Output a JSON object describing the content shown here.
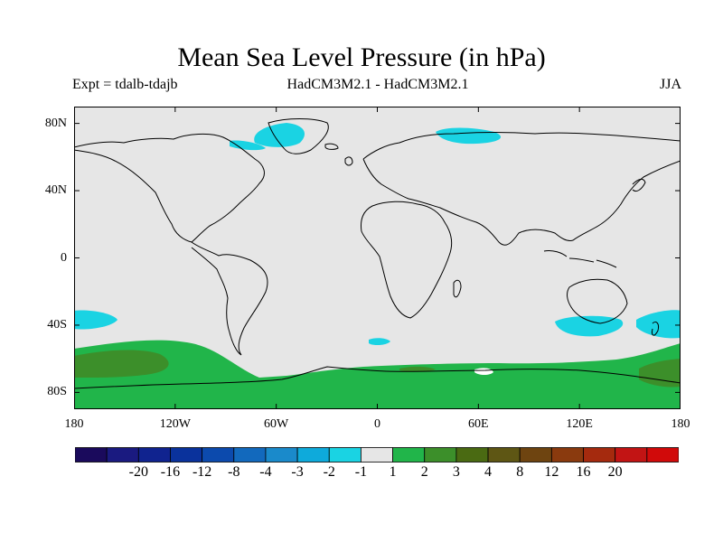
{
  "title": "Mean Sea Level Pressure (in hPa)",
  "subtitle_left": "Expt = tdalb-tdajb",
  "subtitle_center": "HadCM3M2.1 - HadCM3M2.1",
  "subtitle_right": "JJA",
  "axes": {
    "lat_ticks": [
      {
        "value": 80,
        "label": "80N"
      },
      {
        "value": 40,
        "label": "40N"
      },
      {
        "value": 0,
        "label": "0"
      },
      {
        "value": -40,
        "label": "40S"
      },
      {
        "value": -80,
        "label": "80S"
      }
    ],
    "lon_ticks": [
      {
        "value": -180,
        "label": "180"
      },
      {
        "value": -120,
        "label": "120W"
      },
      {
        "value": -60,
        "label": "60W"
      },
      {
        "value": 0,
        "label": "0"
      },
      {
        "value": 60,
        "label": "60E"
      },
      {
        "value": 120,
        "label": "120E"
      },
      {
        "value": 180,
        "label": "180"
      }
    ],
    "lon_range": [
      -180,
      180
    ],
    "lat_range": [
      -90,
      90
    ]
  },
  "colorbar": {
    "colors": [
      "#1a0a5c",
      "#1a1a80",
      "#10238f",
      "#0a329c",
      "#0c4aad",
      "#1269bd",
      "#1a8acb",
      "#0eaadb",
      "#1ad3e3",
      "#e6e6e6",
      "#21b54a",
      "#3c8f2a",
      "#4a6a12",
      "#5e5614",
      "#6e4410",
      "#8a3a0e",
      "#a52a0e",
      "#c21414",
      "#d10a0a"
    ],
    "labels": [
      "-20",
      "-16",
      "-12",
      "-8",
      "-4",
      "-3",
      "-2",
      "-1",
      "1",
      "2",
      "3",
      "4",
      "8",
      "12",
      "16",
      "20"
    ]
  },
  "fields": {
    "neutral_color": "#e6e6e6",
    "cyan_color": "#1ad3e3",
    "green_color": "#21b54a",
    "darkgreen_color": "#3c8f2a",
    "white_color": "#ffffff"
  }
}
